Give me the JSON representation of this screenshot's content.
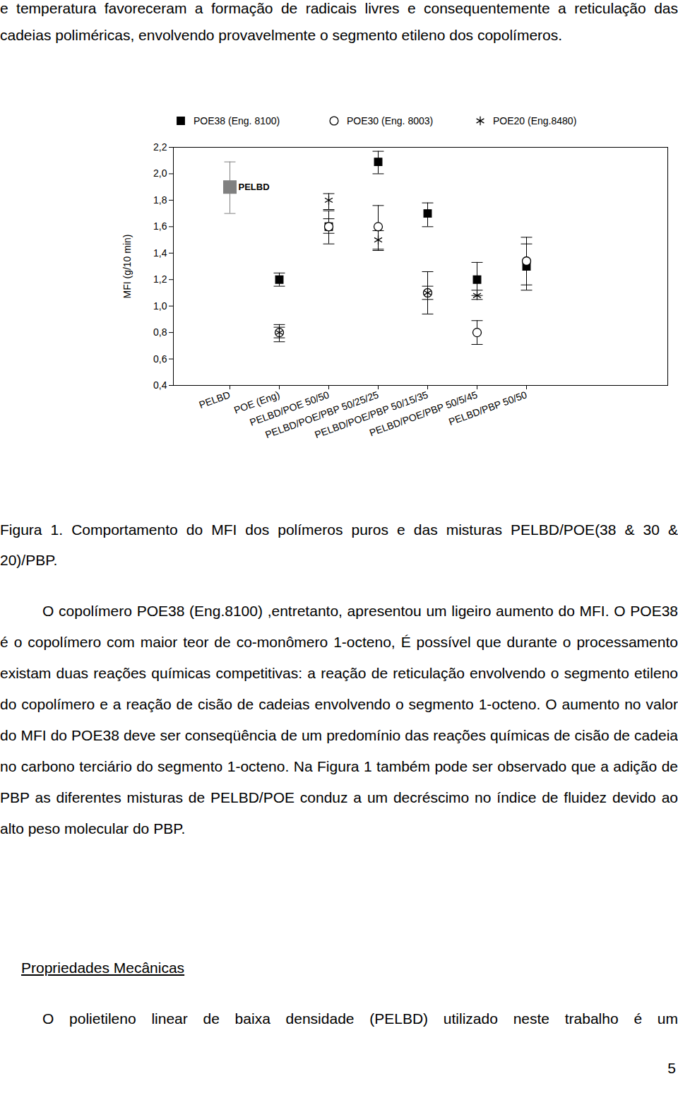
{
  "document": {
    "paragraph_top": "e temperatura favoreceram a formação de radicais livres e consequentemente a reticulação das cadeias poliméricas, envolvendo provavelmente o segmento etileno dos copolímeros.",
    "caption": "Figura 1. Comportamento do MFI dos polímeros puros e das misturas PELBD/POE(38 & 30 & 20)/PBP.",
    "paragraph_1": "O copolímero POE38 (Eng.8100) ,entretanto, apresentou um ligeiro aumento do MFI. O POE38 é o copolímero com maior teor de co-monômero 1-octeno, É possível que durante o processamento existam duas reações químicas competitivas: a reação de reticulação envolvendo o segmento etileno do copolímero e a reação de cisão de cadeias envolvendo o segmento 1-octeno. O aumento no valor do MFI do POE38 deve ser conseqüência de um predomínio das reações químicas de cisão de cadeia no carbono terciário do segmento 1-octeno. Na Figura 1 também pode ser observado que a adição de PBP as diferentes misturas de PELBD/POE conduz a um decréscimo no índice de fluidez devido ao alto peso molecular do PBP.",
    "heading": "Propriedades Mecânicas",
    "paragraph_2": "O polietileno linear de baixa densidade (PELBD) utilizado neste trabalho é um",
    "page_number": 5
  },
  "chart_data": {
    "type": "scatter",
    "y_label": "MFI (g/10 min)",
    "categories": [
      "PELBD",
      "POE (Eng)",
      "PELBD/POE 50/50",
      "PELBD/POE/PBP 50/25/25",
      "PELBD/POE/PBP 50/15/35",
      "PELBD/POE/PBP 50/5/45",
      "PELBD/PBP 50/50"
    ],
    "ylim": [
      0.4,
      2.2
    ],
    "yticks": [
      {
        "value": 0.4,
        "label": "0,4"
      },
      {
        "value": 0.6,
        "label": "0,6"
      },
      {
        "value": 0.8,
        "label": "0,8"
      },
      {
        "value": 1.0,
        "label": "1,0"
      },
      {
        "value": 1.2,
        "label": "1,2"
      },
      {
        "value": 1.4,
        "label": "1,4"
      },
      {
        "value": 1.6,
        "label": "1,6"
      },
      {
        "value": 1.8,
        "label": "1,8"
      },
      {
        "value": 2.0,
        "label": "2,0"
      },
      {
        "value": 2.2,
        "label": "2,2"
      }
    ],
    "legend": "top",
    "series": [
      {
        "name": "PELBD",
        "color": "#808080",
        "marker": "square",
        "values": [
          1.9,
          null,
          null,
          null,
          null,
          null,
          null
        ],
        "errors": [
          [
            1.7,
            2.09
          ],
          null,
          null,
          null,
          null,
          null,
          null
        ]
      },
      {
        "name": "POE38 (Eng. 8100)",
        "color": "#000000",
        "marker": "square",
        "values": [
          null,
          1.2,
          1.6,
          2.09,
          1.7,
          1.2,
          1.3
        ],
        "errors": [
          null,
          [
            1.15,
            1.25
          ],
          [
            1.55,
            1.66
          ],
          [
            2.0,
            2.17
          ],
          [
            1.6,
            1.78
          ],
          [
            1.08,
            1.33
          ],
          [
            1.16,
            1.47
          ]
        ]
      },
      {
        "name": "POE30 (Eng. 8003)",
        "color": "#000000",
        "marker": "circle",
        "values": [
          null,
          0.8,
          1.6,
          1.6,
          1.1,
          0.8,
          1.34
        ],
        "errors": [
          null,
          [
            0.73,
            0.86
          ],
          [
            1.47,
            1.72
          ],
          [
            1.42,
            1.76
          ],
          [
            0.94,
            1.26
          ],
          [
            0.71,
            0.89
          ],
          [
            1.12,
            1.52
          ]
        ]
      },
      {
        "name": "POE20 (Eng.8480)",
        "color": "#000000",
        "marker": "asterisk",
        "values": [
          null,
          0.8,
          1.8,
          1.5,
          1.1,
          1.08,
          null
        ],
        "errors": [
          null,
          [
            0.76,
            0.84
          ],
          [
            1.73,
            1.85
          ],
          [
            1.43,
            1.57
          ],
          [
            1.05,
            1.15
          ],
          [
            1.05,
            1.12
          ],
          null
        ]
      }
    ]
  }
}
